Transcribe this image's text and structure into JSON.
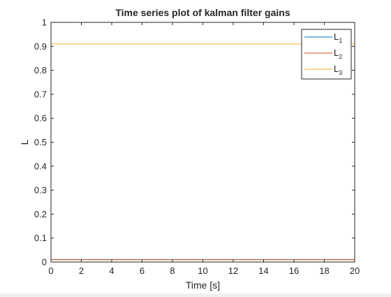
{
  "chart_data": {
    "type": "line",
    "title": "Time series plot of kalman filter gains",
    "xlabel": "Time [s]",
    "ylabel": "L",
    "xlim": [
      0,
      20
    ],
    "ylim": [
      0,
      1
    ],
    "xticks": [
      0,
      2,
      4,
      6,
      8,
      10,
      12,
      14,
      16,
      18,
      20
    ],
    "yticks": [
      0,
      0.1,
      0.2,
      0.3,
      0.4,
      0.5,
      0.6,
      0.7,
      0.8,
      0.9,
      1
    ],
    "xtick_labels": [
      "0",
      "2",
      "4",
      "6",
      "8",
      "10",
      "12",
      "14",
      "16",
      "18",
      "20"
    ],
    "ytick_labels": [
      "0",
      "0.1",
      "0.2",
      "0.3",
      "0.4",
      "0.5",
      "0.6",
      "0.7",
      "0.8",
      "0.9",
      "1"
    ],
    "grid": false,
    "legend_placement": "top-right",
    "series": [
      {
        "name": "L",
        "subscript": "1",
        "color": "#0072bd",
        "x": [
          0,
          20
        ],
        "y": [
          0.01,
          0.01
        ]
      },
      {
        "name": "L",
        "subscript": "2",
        "color": "#d95319",
        "x": [
          0,
          20
        ],
        "y": [
          0.01,
          0.01
        ]
      },
      {
        "name": "L",
        "subscript": "3",
        "color": "#edb120",
        "x": [
          0,
          20
        ],
        "y": [
          0.91,
          0.91
        ]
      }
    ]
  }
}
